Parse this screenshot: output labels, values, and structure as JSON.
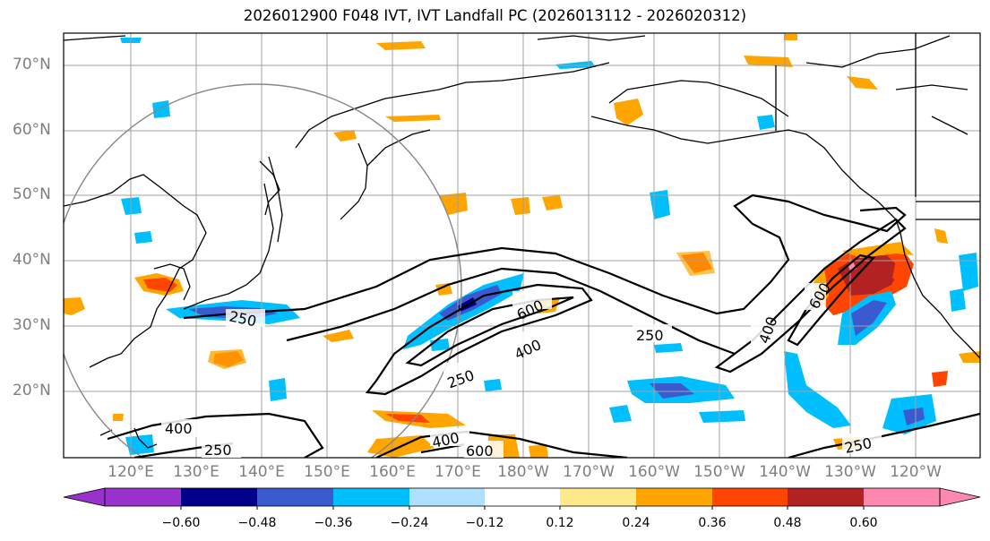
{
  "title": "2026012900 F048 IVT, IVT Landfall PC (2026013112 - 2026020312)",
  "lat_labels": [
    "70°N",
    "60°N",
    "50°N",
    "40°N",
    "30°N",
    "20°N"
  ],
  "lon_labels": [
    "120°E",
    "130°E",
    "140°E",
    "150°E",
    "160°E",
    "170°E",
    "180°W",
    "170°W",
    "160°W",
    "150°W",
    "140°W",
    "130°W",
    "120°W"
  ],
  "contours": {
    "label_250": "250",
    "label_400": "400",
    "label_600": "600"
  },
  "colorbar": {
    "ticks": [
      "−0.60",
      "−0.48",
      "−0.36",
      "−0.24",
      "−0.12",
      "0.12",
      "0.24",
      "0.36",
      "0.48",
      "0.60"
    ],
    "colors": [
      "#9932cc",
      "#00008b",
      "#3a5bcf",
      "#00bfff",
      "#b0e0ff",
      "#ffffff",
      "#ffe98a",
      "#ffa500",
      "#ff4500",
      "#b22222",
      "#ff88b0"
    ]
  }
}
